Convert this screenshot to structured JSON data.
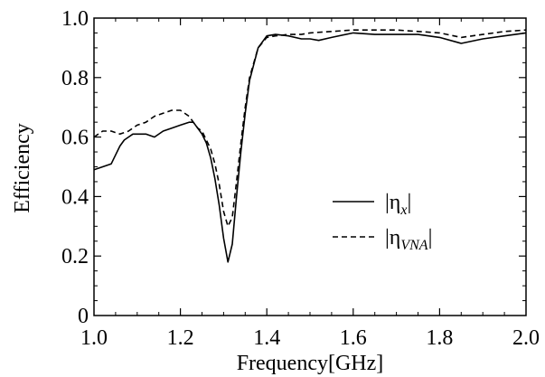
{
  "chart_data": {
    "type": "line",
    "title": "",
    "xlabel": "Frequency[GHz]",
    "ylabel": "Efficiency",
    "xlim": [
      1.0,
      2.0
    ],
    "ylim": [
      0.0,
      1.0
    ],
    "xticks": [
      "1.0",
      "1.2",
      "1.4",
      "1.6",
      "1.8",
      "2.0"
    ],
    "yticks": [
      "0",
      "0.2",
      "0.4",
      "0.6",
      "0.8",
      "1.0"
    ],
    "grid": false,
    "legend_position": "center-right",
    "series": [
      {
        "name_parts": {
          "symbol": "|η",
          "subscript": "x",
          "suffix": "|"
        },
        "style": "solid",
        "color": "#000000",
        "x": [
          1.0,
          1.02,
          1.04,
          1.05,
          1.06,
          1.07,
          1.08,
          1.09,
          1.1,
          1.12,
          1.14,
          1.16,
          1.18,
          1.2,
          1.22,
          1.23,
          1.24,
          1.25,
          1.26,
          1.27,
          1.28,
          1.29,
          1.3,
          1.31,
          1.32,
          1.33,
          1.34,
          1.35,
          1.36,
          1.38,
          1.4,
          1.42,
          1.45,
          1.48,
          1.5,
          1.52,
          1.55,
          1.6,
          1.65,
          1.7,
          1.75,
          1.8,
          1.85,
          1.9,
          1.95,
          2.0
        ],
        "y": [
          0.49,
          0.5,
          0.51,
          0.54,
          0.57,
          0.59,
          0.6,
          0.61,
          0.61,
          0.61,
          0.6,
          0.62,
          0.63,
          0.64,
          0.65,
          0.65,
          0.63,
          0.61,
          0.58,
          0.53,
          0.46,
          0.37,
          0.26,
          0.18,
          0.24,
          0.4,
          0.55,
          0.68,
          0.79,
          0.9,
          0.94,
          0.945,
          0.94,
          0.93,
          0.93,
          0.925,
          0.935,
          0.95,
          0.945,
          0.945,
          0.945,
          0.935,
          0.915,
          0.93,
          0.94,
          0.95
        ]
      },
      {
        "name_parts": {
          "symbol": "|η",
          "subscript": "VNA",
          "suffix": "|"
        },
        "style": "dashed",
        "color": "#000000",
        "x": [
          1.0,
          1.02,
          1.04,
          1.06,
          1.08,
          1.1,
          1.12,
          1.14,
          1.16,
          1.18,
          1.2,
          1.22,
          1.23,
          1.24,
          1.25,
          1.26,
          1.27,
          1.28,
          1.29,
          1.3,
          1.31,
          1.32,
          1.33,
          1.34,
          1.35,
          1.36,
          1.38,
          1.4,
          1.42,
          1.45,
          1.48,
          1.5,
          1.55,
          1.6,
          1.65,
          1.7,
          1.75,
          1.8,
          1.85,
          1.9,
          1.95,
          2.0
        ],
        "y": [
          0.6,
          0.62,
          0.62,
          0.61,
          0.62,
          0.64,
          0.65,
          0.67,
          0.68,
          0.69,
          0.69,
          0.67,
          0.65,
          0.63,
          0.62,
          0.59,
          0.56,
          0.51,
          0.44,
          0.35,
          0.3,
          0.33,
          0.45,
          0.58,
          0.7,
          0.8,
          0.9,
          0.935,
          0.94,
          0.945,
          0.945,
          0.95,
          0.955,
          0.96,
          0.96,
          0.96,
          0.955,
          0.95,
          0.935,
          0.945,
          0.955,
          0.96
        ]
      }
    ]
  }
}
